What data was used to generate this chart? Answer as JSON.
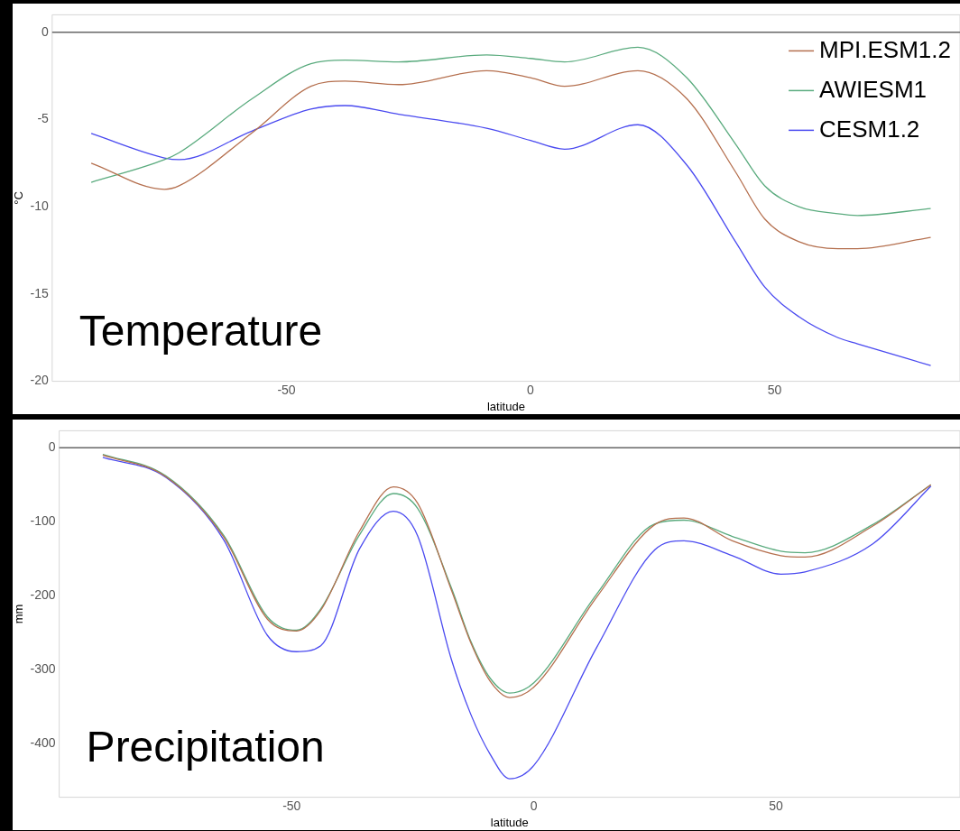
{
  "chart_data": [
    {
      "type": "line",
      "title": "Temperature",
      "xlabel": "latitude",
      "ylabel": "°C",
      "x": [
        -90,
        -75,
        -72,
        -57,
        -45,
        -38,
        -27,
        -9,
        0,
        7,
        22,
        32,
        42,
        48,
        55,
        63,
        67,
        82
      ],
      "xlim": [
        -98,
        88
      ],
      "xticks": [
        -50,
        0,
        50
      ],
      "ylim": [
        -20,
        1
      ],
      "yticks": [
        -20,
        -15,
        -10,
        -5,
        0
      ],
      "grid": false,
      "legend": "top right",
      "ref_lines": [
        {
          "axis": "y",
          "value": 0,
          "color": "#666666"
        }
      ],
      "series": [
        {
          "name": "MPI.ESM1.2",
          "color": "#b5704f",
          "values": [
            -7.5,
            -9.0,
            -8.8,
            -5.75,
            -3.1,
            -2.8,
            -3.0,
            -2.2,
            -2.6,
            -3.1,
            -2.2,
            -3.8,
            -8.0,
            -10.7,
            -12.0,
            -12.4,
            -12.4,
            -11.75
          ]
        },
        {
          "name": "AWIESM1",
          "color": "#5aab7e",
          "values": [
            -8.6,
            -7.3,
            -6.9,
            -3.8,
            -1.8,
            -1.6,
            -1.7,
            -1.3,
            -1.5,
            -1.7,
            -0.86,
            -2.6,
            -6.4,
            -8.8,
            -10.0,
            -10.4,
            -10.5,
            -10.1
          ]
        },
        {
          "name": "CESM1.2",
          "color": "#4a4af0",
          "values": [
            -5.8,
            -7.2,
            -7.3,
            -5.65,
            -4.4,
            -4.2,
            -4.7,
            -5.5,
            -6.2,
            -6.7,
            -5.3,
            -7.6,
            -12.0,
            -14.6,
            -16.3,
            -17.5,
            -17.85,
            -19.1
          ]
        }
      ]
    },
    {
      "type": "line",
      "title": "Precipitation",
      "xlabel": "latitude",
      "ylabel": "mm",
      "x": [
        -89,
        -76,
        -64,
        -55,
        -49,
        -44,
        -36,
        -29,
        -24,
        -17,
        -13,
        -9,
        -5,
        0,
        13,
        25,
        31,
        41,
        51,
        56,
        70,
        82
      ],
      "xlim": [
        -98,
        88
      ],
      "xticks": [
        -50,
        0,
        50
      ],
      "ylim": [
        -473,
        23
      ],
      "yticks": [
        -400,
        -300,
        -200,
        -100,
        0
      ],
      "grid": false,
      "ref_lines": [
        {
          "axis": "y",
          "value": 0,
          "color": "#666666"
        }
      ],
      "series": [
        {
          "color": "#b5704f",
          "values": [
            -10,
            -39,
            -121,
            -232,
            -248,
            -220,
            -113,
            -53,
            -75,
            -193,
            -264,
            -316,
            -338,
            -324,
            -202,
            -104,
            -95,
            -126,
            -146,
            -148,
            -106,
            -50
          ]
        },
        {
          "color": "#5aab7e",
          "values": [
            -9,
            -38,
            -119,
            -229,
            -247,
            -218,
            -118,
            -62,
            -82,
            -190,
            -262,
            -312,
            -332,
            -318,
            -198,
            -103,
            -98,
            -120,
            -140,
            -142,
            -104,
            -50
          ]
        },
        {
          "color": "#4a4af0",
          "values": [
            -13,
            -40,
            -125,
            -254,
            -276,
            -268,
            -137,
            -86,
            -119,
            -287,
            -361,
            -415,
            -448,
            -430,
            -270,
            -138,
            -126,
            -146,
            -171,
            -168,
            -130,
            -52
          ]
        }
      ]
    }
  ]
}
